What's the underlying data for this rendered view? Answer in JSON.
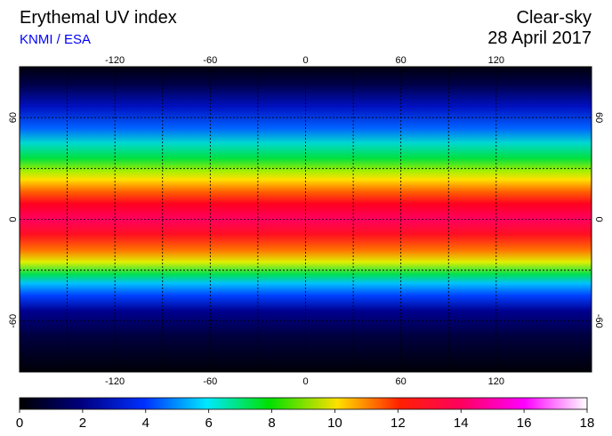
{
  "header": {
    "title": "Erythemal UV index",
    "source": "KNMI / ESA",
    "condition": "Clear-sky",
    "date": "28 April 2017"
  },
  "map": {
    "xlim": [
      -180,
      180
    ],
    "ylim": [
      -90,
      90
    ],
    "xticks": [
      -120,
      -60,
      0,
      60,
      120
    ],
    "yticks": [
      60,
      0,
      -60
    ]
  },
  "colorbar": {
    "xlim": [
      0,
      18
    ],
    "xticks": [
      0,
      2,
      4,
      6,
      8,
      10,
      12,
      14,
      16,
      18
    ]
  }
}
